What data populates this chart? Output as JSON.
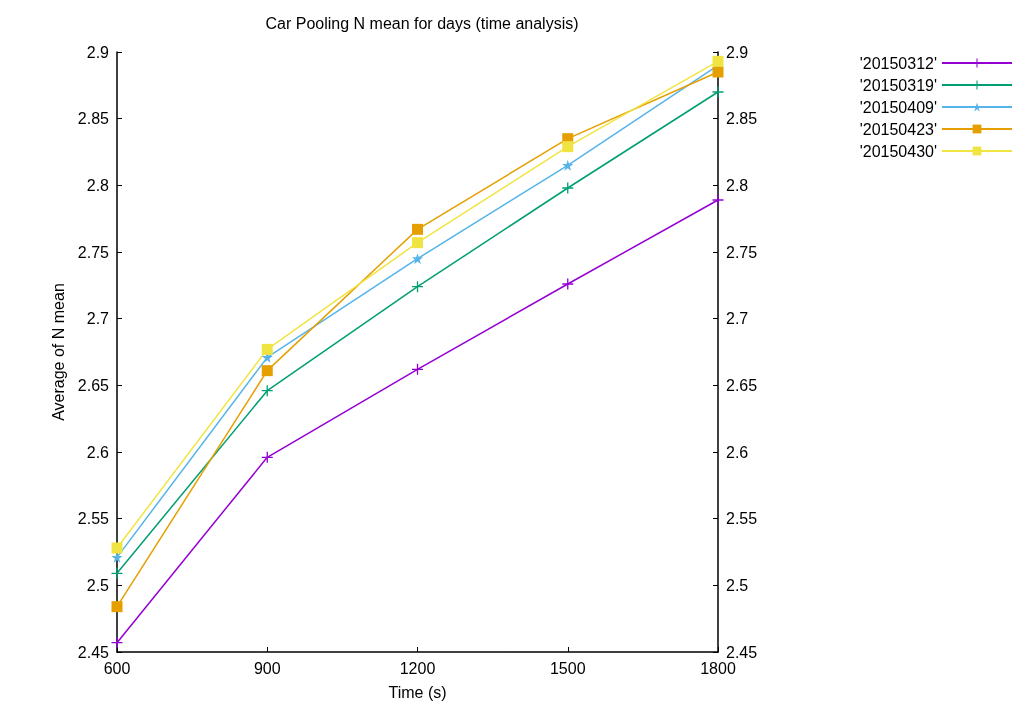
{
  "chart_data": {
    "type": "line",
    "title": "Car Pooling N mean for days (time analysis)",
    "xlabel": "Time (s)",
    "ylabel": "Average of N mean",
    "x": [
      600,
      900,
      1200,
      1500,
      1800
    ],
    "series": [
      {
        "name": "'20150312'",
        "color": "#9400d3",
        "marker": "cross",
        "values": [
          2.457,
          2.596,
          2.662,
          2.726,
          2.789
        ]
      },
      {
        "name": "'20150319'",
        "color": "#009e73",
        "marker": "cross",
        "values": [
          2.509,
          2.646,
          2.724,
          2.798,
          2.87
        ]
      },
      {
        "name": "'20150409'",
        "color": "#56b4e9",
        "marker": "star",
        "values": [
          2.521,
          2.671,
          2.745,
          2.815,
          2.89
        ]
      },
      {
        "name": "'20150423'",
        "color": "#e69f00",
        "marker": "square",
        "values": [
          2.484,
          2.661,
          2.767,
          2.835,
          2.885
        ]
      },
      {
        "name": "'20150430'",
        "color": "#f0e442",
        "marker": "square",
        "values": [
          2.528,
          2.677,
          2.757,
          2.829,
          2.893
        ]
      }
    ],
    "xlim": [
      600,
      1800
    ],
    "xticks": [
      600,
      900,
      1200,
      1500,
      1800
    ],
    "ylim": [
      2.45,
      2.9
    ],
    "yticks": [
      2.45,
      2.5,
      2.55,
      2.6,
      2.65,
      2.7,
      2.75,
      2.8,
      2.85,
      2.9
    ],
    "y2lim": [
      2.45,
      2.9
    ],
    "y2ticks": [
      2.45,
      2.5,
      2.55,
      2.6,
      2.65,
      2.7,
      2.75,
      2.8,
      2.85,
      2.9
    ],
    "grid": false,
    "legend": "top right",
    "line_style": "solid"
  }
}
